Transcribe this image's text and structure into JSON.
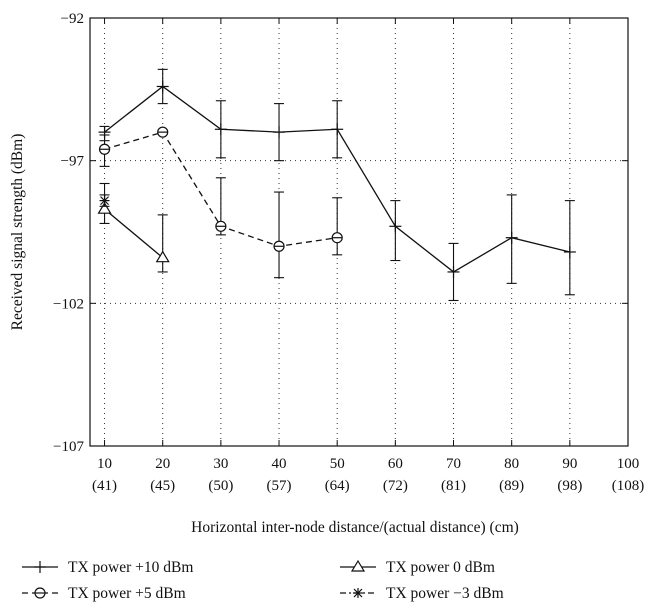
{
  "chart_data": {
    "type": "line",
    "title": "",
    "xlabel": "Horizontal inter-node distance/(actual distance) (cm)",
    "ylabel": "Received signal strength (dBm)",
    "x_ticks": [
      {
        "value": 10,
        "label": "10",
        "sublabel": "(41)"
      },
      {
        "value": 20,
        "label": "20",
        "sublabel": "(45)"
      },
      {
        "value": 30,
        "label": "30",
        "sublabel": "(50)"
      },
      {
        "value": 40,
        "label": "40",
        "sublabel": "(57)"
      },
      {
        "value": 50,
        "label": "50",
        "sublabel": "(64)"
      },
      {
        "value": 60,
        "label": "60",
        "sublabel": "(72)"
      },
      {
        "value": 70,
        "label": "70",
        "sublabel": "(81)"
      },
      {
        "value": 80,
        "label": "80",
        "sublabel": "(89)"
      },
      {
        "value": 90,
        "label": "90",
        "sublabel": "(98)"
      },
      {
        "value": 100,
        "label": "100",
        "sublabel": "(108)"
      }
    ],
    "y_ticks": [
      {
        "value": -92,
        "label": "−92"
      },
      {
        "value": -97,
        "label": "−97"
      },
      {
        "value": -102,
        "label": "−102"
      },
      {
        "value": -107,
        "label": "−107"
      }
    ],
    "xlim": [
      7.5,
      100
    ],
    "ylim": [
      -107,
      -92
    ],
    "grid": "dotted",
    "legend_position": "bottom",
    "series": [
      {
        "name": "TX power +10 dBm",
        "marker": "plus",
        "dash": "solid",
        "x": [
          10,
          20,
          30,
          40,
          50,
          60,
          70,
          80,
          90
        ],
        "y": [
          -96.0,
          -94.4,
          -95.9,
          -96.0,
          -95.9,
          -99.3,
          -100.9,
          -99.7,
          -100.2
        ],
        "err_low": [
          -96.3,
          -95.0,
          -96.9,
          -97.0,
          -96.9,
          -100.5,
          -101.9,
          -101.3,
          -101.7
        ],
        "err_high": [
          -95.8,
          -93.8,
          -94.9,
          -95.0,
          -94.9,
          -98.4,
          -99.9,
          -98.2,
          -98.4
        ]
      },
      {
        "name": "TX power +5 dBm",
        "marker": "circle",
        "dash": "dashed",
        "x": [
          10,
          20,
          30,
          40,
          50
        ],
        "y": [
          -96.6,
          -96.0,
          -99.3,
          -100.0,
          -99.7
        ],
        "err_low": [
          -97.2,
          -96.0,
          -99.6,
          -101.1,
          -100.3
        ],
        "err_high": [
          -96.1,
          -96.0,
          -97.6,
          -98.1,
          -98.3
        ]
      },
      {
        "name": "TX power 0 dBm",
        "marker": "triangle",
        "dash": "solid",
        "x": [
          10,
          20
        ],
        "y": [
          -98.7,
          -100.4
        ],
        "err_low": [
          -99.2,
          -100.9
        ],
        "err_high": [
          -98.2,
          -98.9
        ]
      },
      {
        "name": "TX power −3 dBm",
        "marker": "star",
        "dash": "dashdot",
        "x": [
          10
        ],
        "y": [
          -98.4
        ],
        "err_low": [
          -98.6
        ],
        "err_high": [
          -97.8
        ]
      }
    ]
  }
}
